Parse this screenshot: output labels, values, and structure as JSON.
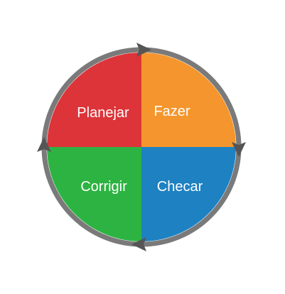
{
  "diagram": {
    "quadrants": [
      {
        "id": "plan",
        "label": "Planejar",
        "color": "#DC3439"
      },
      {
        "id": "do",
        "label": "Fazer",
        "color": "#F4962D"
      },
      {
        "id": "check",
        "label": "Checar",
        "color": "#1E81C2"
      },
      {
        "id": "act",
        "label": "Corrigir",
        "color": "#2DB342"
      }
    ],
    "ring_color": "#7A7A7A",
    "arrow_color": "#555555",
    "direction": "clockwise"
  }
}
